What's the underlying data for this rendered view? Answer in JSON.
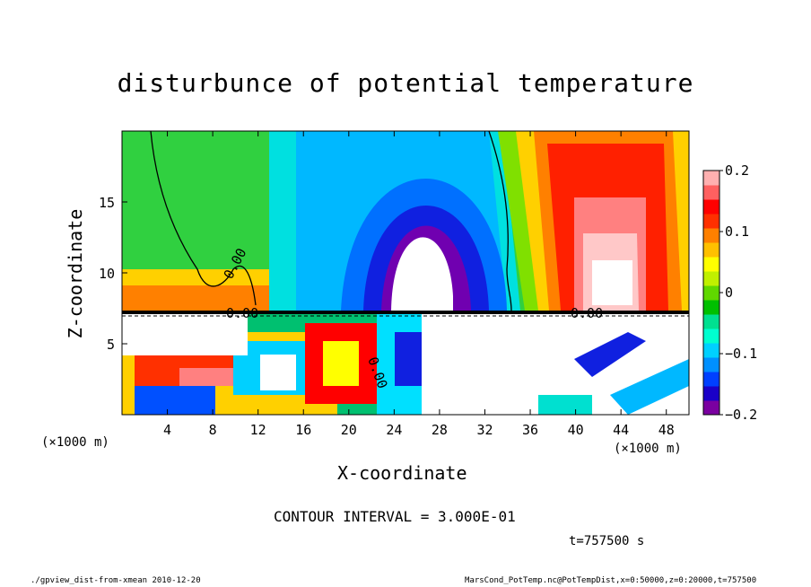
{
  "chart_data": {
    "type": "heatmap",
    "title": "disturbunce of potential temperature",
    "xlabel": "X-coordinate",
    "ylabel": "Z-coordinate",
    "x_unit": "(×1000 m)",
    "x_ticks": [
      4,
      8,
      12,
      16,
      20,
      24,
      28,
      32,
      36,
      40,
      44,
      48
    ],
    "y_ticks": [
      5,
      10,
      15
    ],
    "xlim": [
      0,
      50
    ],
    "ylim": [
      0,
      20
    ],
    "colorbar": {
      "ticks": [
        {
          "value": 0.2,
          "label": "0.2"
        },
        {
          "value": 0.1,
          "label": "0.1"
        },
        {
          "value": 0,
          "label": "0"
        },
        {
          "value": -0.1,
          "label": "−0.1"
        },
        {
          "value": -0.2,
          "label": "−0.2"
        }
      ],
      "range": [
        -0.2,
        0.2
      ],
      "colors": [
        "#7a00a0",
        "#1a00c8",
        "#0040ff",
        "#0090ff",
        "#00d0ff",
        "#00ffd0",
        "#00e090",
        "#00c000",
        "#60d800",
        "#c0f000",
        "#ffff00",
        "#ffc000",
        "#ff8000",
        "#ff3000",
        "#ff0000",
        "#ff6060",
        "#ffb0b0"
      ]
    },
    "contour_labels": [
      "0.00",
      "0.00",
      "0.00",
      "0.00"
    ],
    "contour_interval": "CONTOUR INTERVAL = 3.000E-01"
  },
  "time_label": "t=757500 s",
  "footer": {
    "left": "./gpview_dist-from-xmean  2010-12-20",
    "right": "MarsCond_PotTemp.nc@PotTempDist,x=0:50000,z=0:20000,t=757500"
  }
}
